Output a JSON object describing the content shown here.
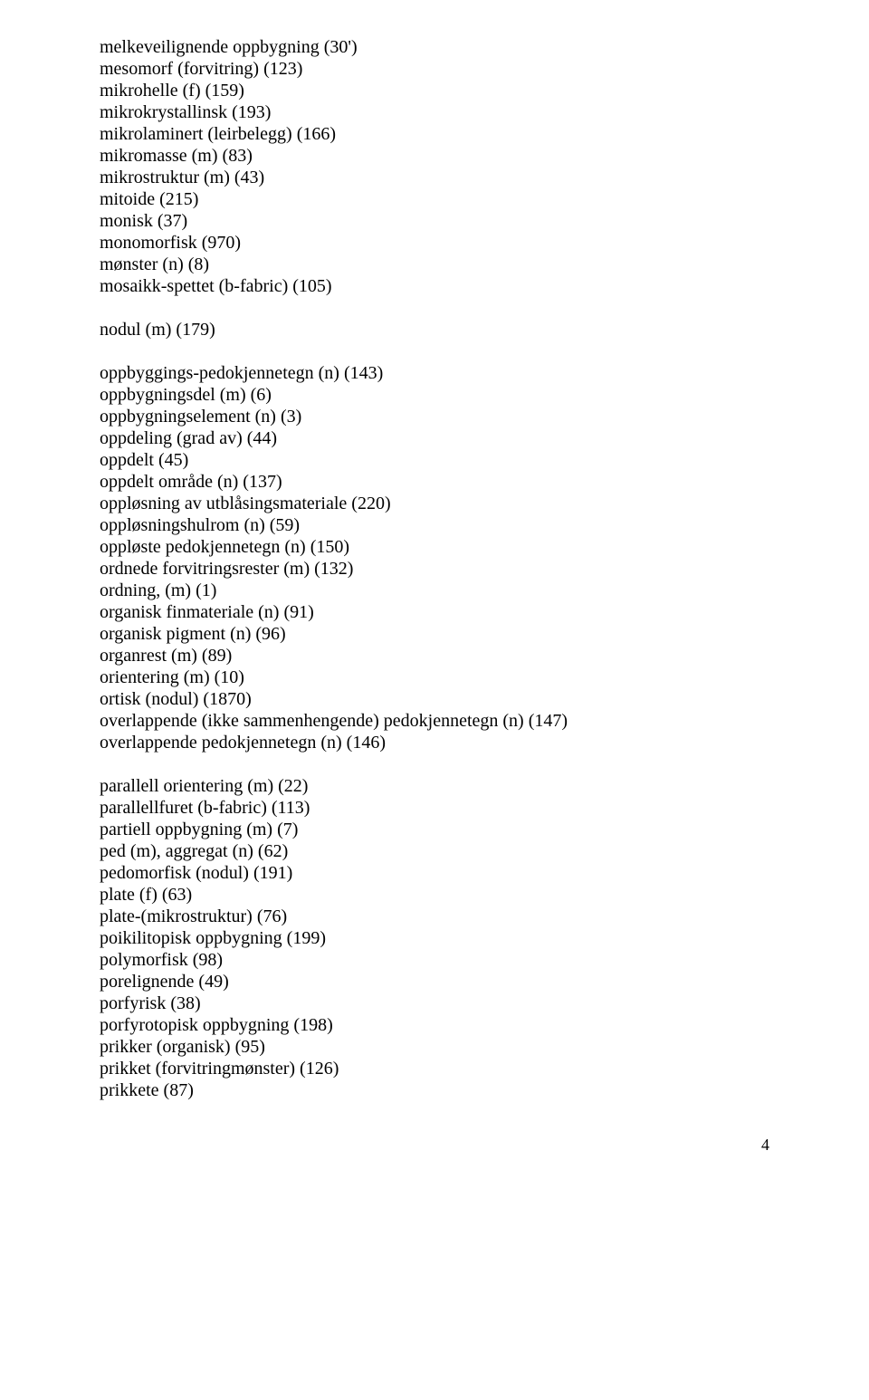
{
  "pageNumber": "4",
  "groups": [
    {
      "lines": [
        "melkeveilignende oppbygning (30')",
        "mesomorf (forvitring) (123)",
        "mikrohelle (f) (159)",
        "mikrokrystallinsk (193)",
        "mikrolaminert (leirbelegg) (166)",
        "mikromasse (m) (83)",
        "mikrostruktur (m) (43)",
        "mitoide (215)",
        "monisk (37)",
        "monomorfisk (970)",
        "mønster (n) (8)",
        "mosaikk-spettet (b-fabric) (105)"
      ]
    },
    {
      "lines": [
        "nodul (m) (179)"
      ]
    },
    {
      "lines": [
        "oppbyggings-pedokjennetegn (n) (143)",
        "oppbygningsdel (m) (6)",
        "oppbygningselement (n) (3)",
        "oppdeling (grad av) (44)",
        "oppdelt (45)",
        "oppdelt område (n) (137)",
        "oppløsning av utblåsingsmateriale (220)",
        "oppløsningshulrom (n) (59)",
        "oppløste pedokjennetegn (n) (150)",
        "ordnede forvitringsrester (m) (132)",
        "ordning, (m) (1)",
        "organisk finmateriale (n) (91)",
        "organisk pigment (n) (96)",
        "organrest (m) (89)",
        "orientering (m) (10)",
        "ortisk (nodul) (1870)",
        "overlappende (ikke sammenhengende) pedokjennetegn (n) (147)",
        "overlappende pedokjennetegn (n) (146)"
      ]
    },
    {
      "lines": [
        "parallell orientering (m) (22)",
        "parallellfuret (b-fabric) (113)",
        "partiell oppbygning (m) (7)",
        "ped (m), aggregat (n) (62)",
        "pedomorfisk (nodul) (191)",
        "plate (f) (63)",
        "plate-(mikrostruktur) (76)",
        "poikilitopisk oppbygning (199)",
        "polymorfisk (98)",
        "porelignende (49)",
        "porfyrisk (38)",
        "porfyrotopisk oppbygning (198)",
        "prikker (organisk) (95)",
        "prikket (forvitringmønster) (126)",
        "prikkete (87)"
      ]
    }
  ]
}
